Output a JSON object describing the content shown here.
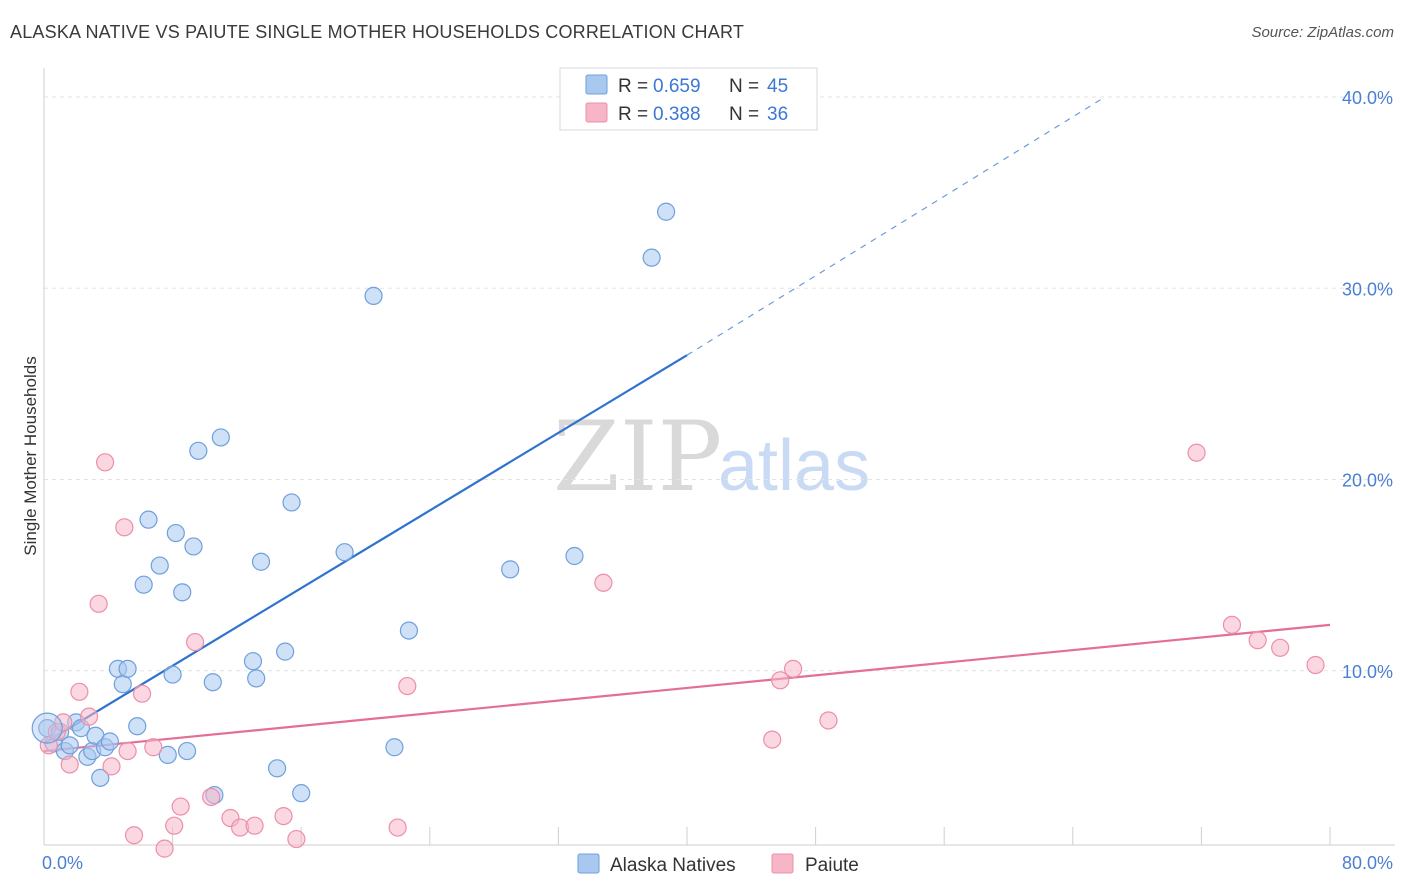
{
  "title": "ALASKA NATIVE VS PAIUTE SINGLE MOTHER HOUSEHOLDS CORRELATION CHART",
  "source": "Source: ZipAtlas.com",
  "watermark": {
    "zip": "ZIP",
    "atlas": "atlas"
  },
  "legend": {
    "rows": [
      {
        "r_label": "R =",
        "r_value": "0.659",
        "n_label": "N =",
        "n_value": "45",
        "color": "#a8c8f0"
      },
      {
        "r_label": "R =",
        "r_value": "0.388",
        "n_label": "N =",
        "n_value": "36",
        "color": "#f7b6c8"
      }
    ]
  },
  "bottom_legend": [
    {
      "label": "Alaska Natives",
      "color": "#a8c8f0"
    },
    {
      "label": "Paiute",
      "color": "#f7b6c8"
    }
  ],
  "chart_data": {
    "type": "scatter",
    "title": "ALASKA NATIVE VS PAIUTE SINGLE MOTHER HOUSEHOLDS CORRELATION CHART",
    "xlabel": "",
    "ylabel": "Single Mother Households",
    "xlim": [
      0,
      80
    ],
    "ylim": [
      0,
      40
    ],
    "x_tick_labels": [
      "0.0%",
      "80.0%"
    ],
    "y_ticks": [
      10,
      20,
      30,
      40
    ],
    "y_tick_labels": [
      "10.0%",
      "20.0%",
      "30.0%",
      "40.0%"
    ],
    "grid": true,
    "series": [
      {
        "name": "Alaska Natives",
        "color": "#a8c8f0",
        "edge": "#6f9fdc",
        "line_color": "#2f72d0",
        "trend": {
          "x0": 0,
          "y0": 6.2,
          "x1": 40,
          "y1": 26.5,
          "dash_to_x": 66,
          "dash_to_y": 40.0
        },
        "points": [
          [
            0.2,
            7.0
          ],
          [
            0.6,
            6.2
          ],
          [
            1.0,
            6.8
          ],
          [
            1.3,
            5.8
          ],
          [
            1.6,
            6.1
          ],
          [
            2.0,
            7.3
          ],
          [
            2.3,
            7.0
          ],
          [
            2.7,
            5.5
          ],
          [
            3.0,
            5.8
          ],
          [
            3.2,
            6.6
          ],
          [
            3.5,
            4.4
          ],
          [
            3.8,
            6.0
          ],
          [
            4.1,
            6.3
          ],
          [
            4.6,
            10.1
          ],
          [
            4.9,
            9.3
          ],
          [
            5.2,
            10.1
          ],
          [
            5.8,
            7.1
          ],
          [
            6.2,
            14.5
          ],
          [
            6.5,
            17.9
          ],
          [
            7.2,
            15.5
          ],
          [
            7.7,
            5.6
          ],
          [
            8.0,
            9.8
          ],
          [
            8.2,
            17.2
          ],
          [
            8.6,
            14.1
          ],
          [
            8.9,
            5.8
          ],
          [
            9.3,
            16.5
          ],
          [
            9.6,
            21.5
          ],
          [
            10.5,
            9.4
          ],
          [
            10.6,
            3.5
          ],
          [
            11.0,
            22.2
          ],
          [
            13.0,
            10.5
          ],
          [
            13.2,
            9.6
          ],
          [
            13.5,
            15.7
          ],
          [
            14.5,
            4.9
          ],
          [
            15.0,
            11.0
          ],
          [
            16.0,
            3.6
          ],
          [
            15.4,
            18.8
          ],
          [
            18.7,
            16.2
          ],
          [
            20.5,
            29.6
          ],
          [
            21.8,
            6.0
          ],
          [
            22.7,
            12.1
          ],
          [
            29.0,
            15.3
          ],
          [
            33.0,
            16.0
          ],
          [
            37.8,
            31.6
          ],
          [
            38.7,
            34.0
          ]
        ]
      },
      {
        "name": "Paiute",
        "color": "#f7b6c8",
        "edge": "#ec8fa9",
        "line_color": "#e46f96",
        "trend": {
          "x0": 0,
          "y0": 5.8,
          "x1": 80,
          "y1": 12.4
        },
        "points": [
          [
            0.3,
            6.1
          ],
          [
            0.8,
            6.8
          ],
          [
            1.2,
            7.3
          ],
          [
            1.6,
            5.1
          ],
          [
            2.2,
            8.9
          ],
          [
            2.8,
            7.6
          ],
          [
            3.4,
            13.5
          ],
          [
            3.8,
            20.9
          ],
          [
            4.2,
            5.0
          ],
          [
            5.0,
            17.5
          ],
          [
            5.2,
            5.8
          ],
          [
            5.6,
            1.4
          ],
          [
            6.1,
            8.8
          ],
          [
            6.8,
            6.0
          ],
          [
            7.5,
            0.7
          ],
          [
            8.1,
            1.9
          ],
          [
            8.5,
            2.9
          ],
          [
            9.4,
            11.5
          ],
          [
            10.4,
            3.4
          ],
          [
            11.6,
            2.3
          ],
          [
            12.2,
            1.8
          ],
          [
            13.1,
            1.9
          ],
          [
            14.9,
            2.4
          ],
          [
            15.7,
            1.2
          ],
          [
            22.0,
            1.8
          ],
          [
            22.6,
            9.2
          ],
          [
            34.8,
            14.6
          ],
          [
            45.3,
            6.4
          ],
          [
            45.8,
            9.5
          ],
          [
            46.6,
            10.1
          ],
          [
            48.8,
            7.4
          ],
          [
            71.7,
            21.4
          ],
          [
            73.9,
            12.4
          ],
          [
            75.5,
            11.6
          ],
          [
            76.9,
            11.2
          ],
          [
            79.1,
            10.3
          ]
        ]
      }
    ]
  }
}
